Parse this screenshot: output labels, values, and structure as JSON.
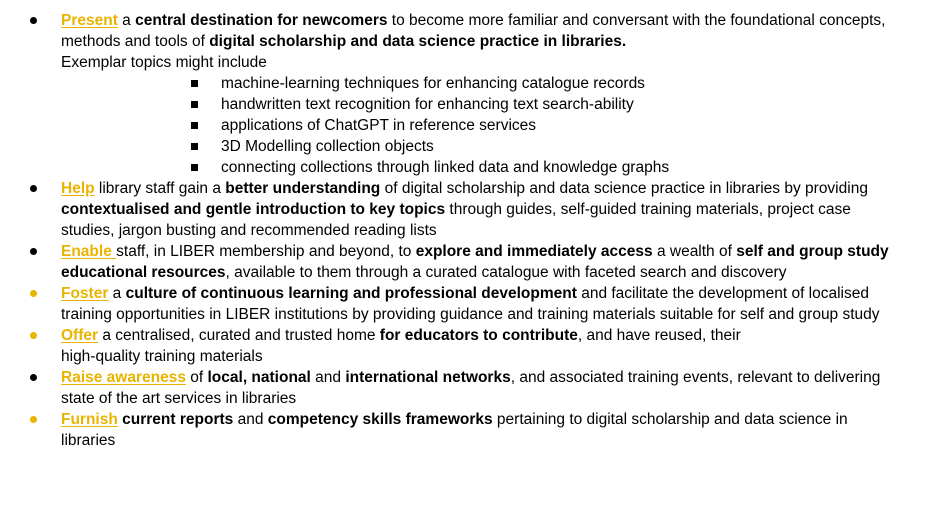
{
  "colors": {
    "accent": "#e8b400",
    "text": "#000000"
  },
  "goals": [
    {
      "verb": "Present",
      "segments": [
        {
          "text": " a ",
          "bold": false
        },
        {
          "text": "central destination for newcomers",
          "bold": true
        },
        {
          "text": " to become more familiar and conversant with the foundational concepts, methods and tools of ",
          "bold": false
        },
        {
          "text": "digital scholarship and data science practice in libraries.",
          "bold": true
        }
      ],
      "note": "Exemplar topics might include",
      "topics": [
        "machine-learning techniques for enhancing catalogue records",
        "handwritten text recognition for enhancing text search-ability",
        "applications of ChatGPT in reference services",
        "3D Modelling collection objects",
        "connecting collections through linked data and knowledge graphs"
      ]
    },
    {
      "verb": "Help",
      "segments": [
        {
          "text": " library staff gain a ",
          "bold": false
        },
        {
          "text": "better understanding",
          "bold": true
        },
        {
          "text": " of digital scholarship and data science practice in libraries by providing ",
          "bold": false
        },
        {
          "text": "contextualised and gentle introduction to key topics",
          "bold": true
        },
        {
          "text": "  through guides, self-guided training materials, project case studies, jargon busting and recommended reading lists",
          "bold": false
        }
      ]
    },
    {
      "verb": "Enable ",
      "segments": [
        {
          "text": "staff, in LIBER membership and beyond, to ",
          "bold": false
        },
        {
          "text": "explore and immediately access",
          "bold": true
        },
        {
          "text": " a wealth of ",
          "bold": false
        },
        {
          "text": "self and group study educational resources",
          "bold": true
        },
        {
          "text": ", available to them through a curated catalogue with faceted search and discovery",
          "bold": false
        }
      ]
    },
    {
      "verb": "Foster",
      "segments": [
        {
          "text": " a ",
          "bold": false
        },
        {
          "text": "culture of continuous learning and professional development",
          "bold": true
        },
        {
          "text": " and facilitate the development of localised training opportunities in LIBER institutions by providing guidance and training materials suitable for self and group study",
          "bold": false
        }
      ]
    },
    {
      "verb": "Offer",
      "segments": [
        {
          "text": " a centralised, curated and trusted home ",
          "bold": false
        },
        {
          "text": "for educators to contribute",
          "bold": true
        },
        {
          "text": ", and have reused, their",
          "bold": false
        },
        {
          "text": "\n",
          "bold": false,
          "break": true
        },
        {
          "text": "high-quality training materials",
          "bold": false
        }
      ]
    },
    {
      "verb": "Raise awareness",
      "segments": [
        {
          "text": " of ",
          "bold": false
        },
        {
          "text": "local, national",
          "bold": true
        },
        {
          "text": " and ",
          "bold": false
        },
        {
          "text": "international networks",
          "bold": true
        },
        {
          "text": ", and associated training events, relevant to delivering state of the art services in libraries",
          "bold": false
        }
      ]
    },
    {
      "verb": "Furnish",
      "segments": [
        {
          "text": " ",
          "bold": false
        },
        {
          "text": "current reports",
          "bold": true
        },
        {
          "text": " and ",
          "bold": false
        },
        {
          "text": "competency skills frameworks",
          "bold": true
        },
        {
          "text": " pertaining to digital scholarship and data science in libraries",
          "bold": false
        }
      ]
    }
  ]
}
